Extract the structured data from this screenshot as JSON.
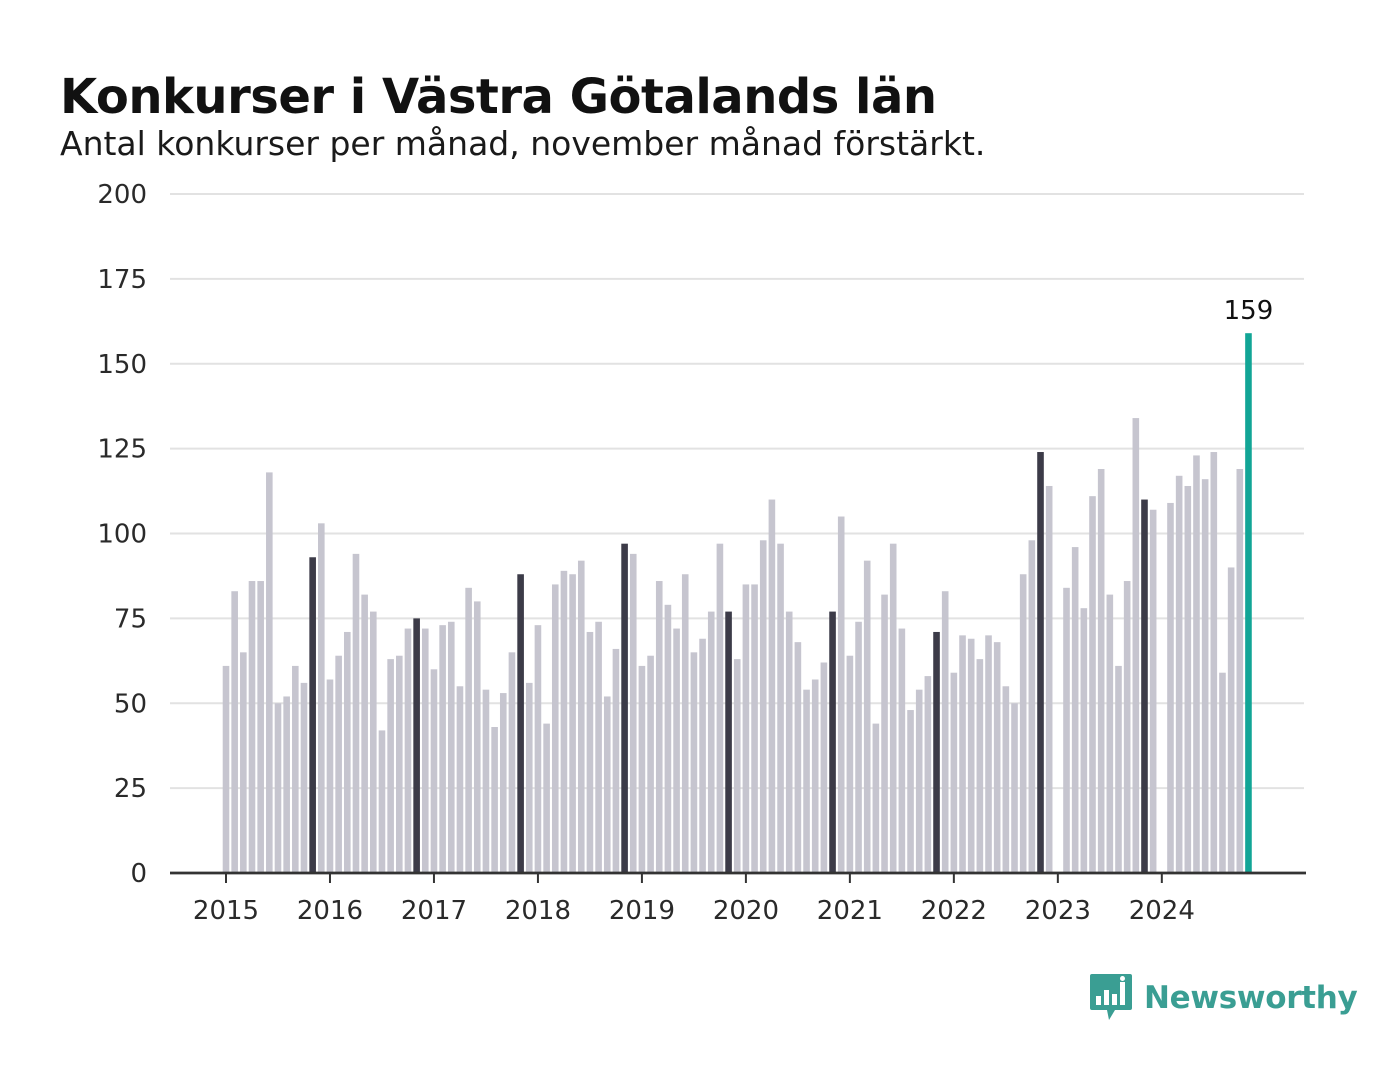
{
  "header": {
    "title": "Konkurser i Västra Götalands län",
    "subtitle": "Antal konkurser per månad, november månad förstärkt."
  },
  "brand": {
    "name": "Newsworthy",
    "icon": "newsworthy-logo-icon",
    "color": "#3a9e93"
  },
  "colors": {
    "bar_default": "#c6c5cf",
    "bar_november": "#3c3b48",
    "bar_latest": "#12a596",
    "grid": "#e2e2e2",
    "axis": "#333333"
  },
  "chart_data": {
    "type": "bar",
    "title": "Konkurser i Västra Götalands län",
    "subtitle": "Antal konkurser per månad, november månad förstärkt.",
    "xlabel": "",
    "ylabel": "",
    "ylim": [
      0,
      200
    ],
    "yticks": [
      0,
      25,
      50,
      75,
      100,
      125,
      150,
      175,
      200
    ],
    "xticks": [
      "2015",
      "2016",
      "2017",
      "2018",
      "2019",
      "2020",
      "2021",
      "2022",
      "2023",
      "2024"
    ],
    "grid": true,
    "legend": "none",
    "highlight_label": "159",
    "months": [
      [
        "2015-01",
        61
      ],
      [
        "2015-02",
        83
      ],
      [
        "2015-03",
        65
      ],
      [
        "2015-04",
        86
      ],
      [
        "2015-05",
        86
      ],
      [
        "2015-06",
        118
      ],
      [
        "2015-07",
        50
      ],
      [
        "2015-08",
        52
      ],
      [
        "2015-09",
        61
      ],
      [
        "2015-10",
        56
      ],
      [
        "2015-11",
        93
      ],
      [
        "2015-12",
        103
      ],
      [
        "2016-01",
        57
      ],
      [
        "2016-02",
        64
      ],
      [
        "2016-03",
        71
      ],
      [
        "2016-04",
        94
      ],
      [
        "2016-05",
        82
      ],
      [
        "2016-06",
        77
      ],
      [
        "2016-07",
        42
      ],
      [
        "2016-08",
        63
      ],
      [
        "2016-09",
        64
      ],
      [
        "2016-10",
        72
      ],
      [
        "2016-11",
        75
      ],
      [
        "2016-12",
        72
      ],
      [
        "2017-01",
        60
      ],
      [
        "2017-02",
        73
      ],
      [
        "2017-03",
        74
      ],
      [
        "2017-04",
        55
      ],
      [
        "2017-05",
        84
      ],
      [
        "2017-06",
        80
      ],
      [
        "2017-07",
        54
      ],
      [
        "2017-08",
        43
      ],
      [
        "2017-09",
        53
      ],
      [
        "2017-10",
        65
      ],
      [
        "2017-11",
        88
      ],
      [
        "2017-12",
        56
      ],
      [
        "2018-01",
        73
      ],
      [
        "2018-02",
        44
      ],
      [
        "2018-03",
        85
      ],
      [
        "2018-04",
        89
      ],
      [
        "2018-05",
        88
      ],
      [
        "2018-06",
        92
      ],
      [
        "2018-07",
        71
      ],
      [
        "2018-08",
        74
      ],
      [
        "2018-09",
        52
      ],
      [
        "2018-10",
        66
      ],
      [
        "2018-11",
        97
      ],
      [
        "2018-12",
        94
      ],
      [
        "2019-01",
        61
      ],
      [
        "2019-02",
        64
      ],
      [
        "2019-03",
        86
      ],
      [
        "2019-04",
        79
      ],
      [
        "2019-05",
        72
      ],
      [
        "2019-06",
        88
      ],
      [
        "2019-07",
        65
      ],
      [
        "2019-08",
        69
      ],
      [
        "2019-09",
        77
      ],
      [
        "2019-10",
        97
      ],
      [
        "2019-11",
        77
      ],
      [
        "2019-12",
        63
      ],
      [
        "2020-01",
        85
      ],
      [
        "2020-02",
        85
      ],
      [
        "2020-03",
        98
      ],
      [
        "2020-04",
        110
      ],
      [
        "2020-05",
        97
      ],
      [
        "2020-06",
        77
      ],
      [
        "2020-07",
        68
      ],
      [
        "2020-08",
        54
      ],
      [
        "2020-09",
        57
      ],
      [
        "2020-10",
        62
      ],
      [
        "2020-11",
        77
      ],
      [
        "2020-12",
        105
      ],
      [
        "2021-01",
        64
      ],
      [
        "2021-02",
        74
      ],
      [
        "2021-03",
        92
      ],
      [
        "2021-04",
        44
      ],
      [
        "2021-05",
        82
      ],
      [
        "2021-06",
        97
      ],
      [
        "2021-07",
        72
      ],
      [
        "2021-08",
        48
      ],
      [
        "2021-09",
        54
      ],
      [
        "2021-10",
        58
      ],
      [
        "2021-11",
        71
      ],
      [
        "2021-12",
        83
      ],
      [
        "2022-01",
        59
      ],
      [
        "2022-02",
        70
      ],
      [
        "2022-03",
        69
      ],
      [
        "2022-04",
        63
      ],
      [
        "2022-05",
        70
      ],
      [
        "2022-06",
        68
      ],
      [
        "2022-07",
        55
      ],
      [
        "2022-08",
        50
      ],
      [
        "2022-09",
        88
      ],
      [
        "2022-10",
        98
      ],
      [
        "2022-11",
        124
      ],
      [
        "2022-12",
        114
      ],
      [
        "2023-01",
        0
      ],
      [
        "2023-02",
        84
      ],
      [
        "2023-03",
        96
      ],
      [
        "2023-04",
        78
      ],
      [
        "2023-05",
        111
      ],
      [
        "2023-06",
        119
      ],
      [
        "2023-07",
        82
      ],
      [
        "2023-08",
        61
      ],
      [
        "2023-09",
        86
      ],
      [
        "2023-10",
        134
      ],
      [
        "2023-11",
        110
      ],
      [
        "2023-12",
        107
      ],
      [
        "2024-01",
        0
      ],
      [
        "2024-02",
        109
      ],
      [
        "2024-03",
        117
      ],
      [
        "2024-04",
        114
      ],
      [
        "2024-05",
        123
      ],
      [
        "2024-06",
        116
      ],
      [
        "2024-07",
        124
      ],
      [
        "2024-08",
        59
      ],
      [
        "2024-09",
        90
      ],
      [
        "2024-10",
        119
      ],
      [
        "2024-11",
        159
      ]
    ]
  }
}
